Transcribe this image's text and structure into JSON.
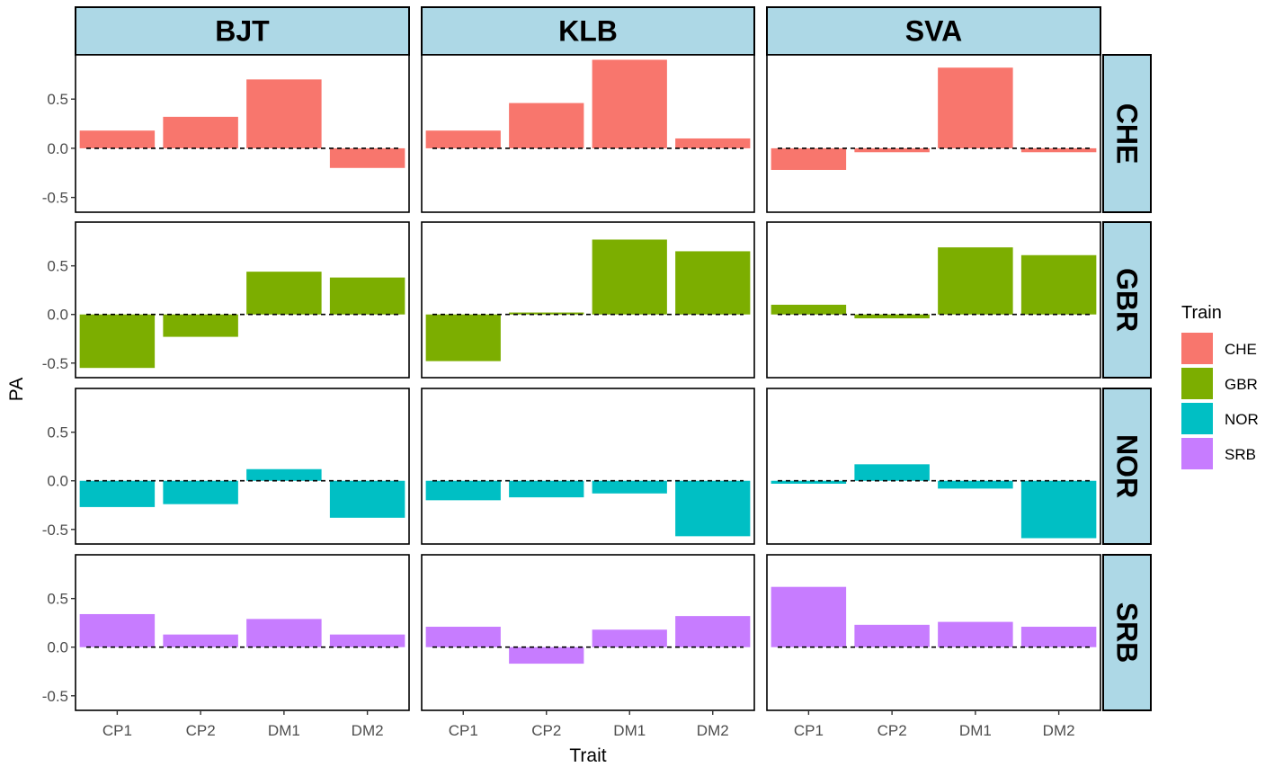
{
  "chart_data": {
    "type": "bar",
    "layout": "facet-grid",
    "xlabel": "Trait",
    "ylabel": "PA",
    "categories": [
      "CP1",
      "CP2",
      "DM1",
      "DM2"
    ],
    "ylim": [
      -0.65,
      0.95
    ],
    "yticks": [
      -0.5,
      0.0,
      0.5
    ],
    "ytick_labels": [
      "-0.5",
      "0.0",
      "0.5"
    ],
    "columns": [
      "BJT",
      "KLB",
      "SVA"
    ],
    "rows": [
      "CHE",
      "GBR",
      "NOR",
      "SRB"
    ],
    "reference_line": 0,
    "legend": {
      "title": "Train",
      "placement": "right",
      "entries": [
        {
          "label": "CHE",
          "color": "#F8766D"
        },
        {
          "label": "GBR",
          "color": "#7CAE00"
        },
        {
          "label": "NOR",
          "color": "#00BFC4"
        },
        {
          "label": "SRB",
          "color": "#C77CFF"
        }
      ]
    },
    "values": {
      "CHE": {
        "BJT": [
          0.18,
          0.32,
          0.7,
          -0.2
        ],
        "KLB": [
          0.18,
          0.46,
          0.9,
          0.1
        ],
        "SVA": [
          -0.22,
          -0.04,
          0.82,
          -0.04
        ]
      },
      "GBR": {
        "BJT": [
          -0.55,
          -0.23,
          0.44,
          0.38
        ],
        "KLB": [
          -0.48,
          0.02,
          0.77,
          0.65
        ],
        "SVA": [
          0.1,
          -0.04,
          0.69,
          0.61
        ]
      },
      "NOR": {
        "BJT": [
          -0.27,
          -0.24,
          0.12,
          -0.38
        ],
        "KLB": [
          -0.2,
          -0.17,
          -0.13,
          -0.57
        ],
        "SVA": [
          -0.03,
          0.17,
          -0.08,
          -0.59
        ]
      },
      "SRB": {
        "BJT": [
          0.34,
          0.13,
          0.29,
          0.13
        ],
        "KLB": [
          0.21,
          -0.17,
          0.18,
          0.32
        ],
        "SVA": [
          0.62,
          0.23,
          0.26,
          0.21
        ]
      }
    }
  }
}
